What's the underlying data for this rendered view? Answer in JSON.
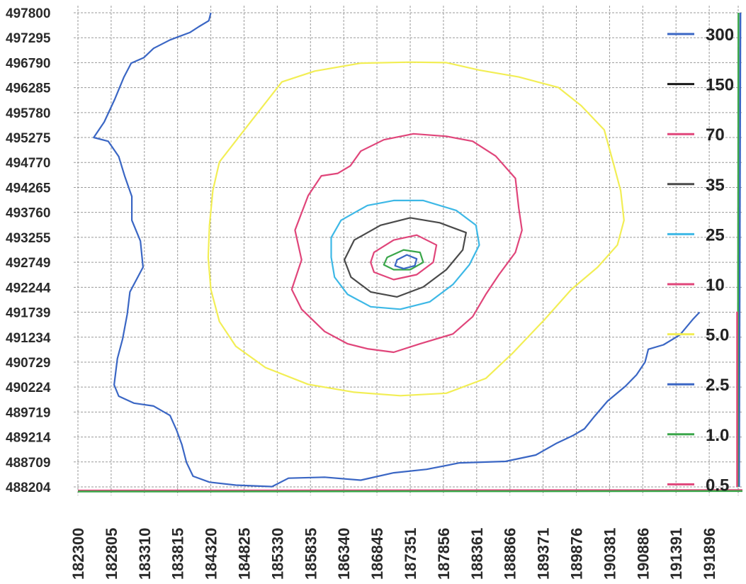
{
  "chart_data": {
    "type": "contour",
    "title": "",
    "xlabel": "",
    "ylabel": "",
    "xlim": [
      182300,
      192401
    ],
    "ylim": [
      488204,
      497800
    ],
    "grid": true,
    "legend_position": "right",
    "x_ticks": [
      "182300",
      "182805",
      "183310",
      "183815",
      "184320",
      "184825",
      "185330",
      "185835",
      "186340",
      "186845",
      "187351",
      "187856",
      "188361",
      "188866",
      "189371",
      "189876",
      "190381",
      "190886",
      "191391",
      "191896"
    ],
    "y_ticks": [
      "497800",
      "497295",
      "496790",
      "496285",
      "495780",
      "495275",
      "494770",
      "494265",
      "493760",
      "493255",
      "492749",
      "492244",
      "491739",
      "491234",
      "490729",
      "490224",
      "489719",
      "489214",
      "488709",
      "488204"
    ],
    "highlighted_y_ticks": [
      "492244",
      "491234"
    ],
    "levels": [
      {
        "label": "300",
        "color": "#3a66c4"
      },
      {
        "label": "150",
        "color": "#1a1a1a"
      },
      {
        "label": "70",
        "color": "#e0457a"
      },
      {
        "label": "35",
        "color": "#4a4a4a"
      },
      {
        "label": "25",
        "color": "#3db8e6"
      },
      {
        "label": "10",
        "color": "#e0457a"
      },
      {
        "label": "5.0",
        "color": "#f2ee55"
      },
      {
        "label": "2.5",
        "color": "#3a66c4"
      },
      {
        "label": "1.0",
        "color": "#3aa64a"
      },
      {
        "label": "0.5",
        "color": "#e0457a"
      }
    ],
    "contours": [
      {
        "level": "2.5",
        "color": "#3a66c4",
        "closed": false,
        "points": [
          [
            184320,
            497800
          ],
          [
            184290,
            497640
          ],
          [
            184140,
            497520
          ],
          [
            184000,
            497400
          ],
          [
            183700,
            497250
          ],
          [
            183450,
            497080
          ],
          [
            183300,
            496890
          ],
          [
            183110,
            496780
          ],
          [
            183000,
            496500
          ],
          [
            182860,
            496050
          ],
          [
            182700,
            495590
          ],
          [
            182540,
            495275
          ],
          [
            182760,
            495200
          ],
          [
            182920,
            494890
          ],
          [
            183010,
            494500
          ],
          [
            183120,
            494080
          ],
          [
            183120,
            493600
          ],
          [
            183250,
            493180
          ],
          [
            183290,
            492650
          ],
          [
            183090,
            492150
          ],
          [
            183050,
            491700
          ],
          [
            182980,
            491200
          ],
          [
            182900,
            490800
          ],
          [
            182850,
            490270
          ],
          [
            182920,
            490040
          ],
          [
            183150,
            489900
          ],
          [
            183450,
            489840
          ],
          [
            183700,
            489650
          ],
          [
            183800,
            489350
          ],
          [
            183880,
            489060
          ],
          [
            183950,
            488700
          ],
          [
            184050,
            488420
          ],
          [
            184300,
            488300
          ],
          [
            184700,
            488240
          ],
          [
            185250,
            488210
          ],
          [
            185500,
            488380
          ],
          [
            186050,
            488400
          ],
          [
            186600,
            488340
          ],
          [
            187100,
            488490
          ],
          [
            187600,
            488560
          ],
          [
            188100,
            488690
          ],
          [
            188800,
            488720
          ],
          [
            189260,
            488850
          ],
          [
            189580,
            489090
          ],
          [
            189820,
            489240
          ],
          [
            190000,
            489380
          ],
          [
            190150,
            489630
          ],
          [
            190350,
            489940
          ],
          [
            190620,
            490240
          ],
          [
            190790,
            490470
          ],
          [
            190920,
            490730
          ],
          [
            190970,
            490990
          ],
          [
            191200,
            491080
          ],
          [
            191450,
            491280
          ],
          [
            191650,
            491600
          ],
          [
            191750,
            491740
          ]
        ]
      },
      {
        "level": "5.0",
        "color": "#f2ee55",
        "closed": true,
        "points": [
          [
            185400,
            496400
          ],
          [
            185900,
            496620
          ],
          [
            186600,
            496780
          ],
          [
            187350,
            496800
          ],
          [
            187900,
            496790
          ],
          [
            188400,
            496640
          ],
          [
            189000,
            496500
          ],
          [
            189600,
            496290
          ],
          [
            189950,
            495920
          ],
          [
            190300,
            495430
          ],
          [
            190450,
            494700
          ],
          [
            190550,
            494200
          ],
          [
            190600,
            493600
          ],
          [
            190500,
            493100
          ],
          [
            190200,
            492650
          ],
          [
            189800,
            492200
          ],
          [
            189400,
            491600
          ],
          [
            188900,
            490900
          ],
          [
            188500,
            490400
          ],
          [
            187900,
            490100
          ],
          [
            187200,
            490050
          ],
          [
            186500,
            490120
          ],
          [
            185800,
            490280
          ],
          [
            185150,
            490620
          ],
          [
            184700,
            491050
          ],
          [
            184450,
            491550
          ],
          [
            184320,
            492200
          ],
          [
            184280,
            492850
          ],
          [
            184300,
            493500
          ],
          [
            184350,
            494200
          ],
          [
            184450,
            494780
          ],
          [
            184900,
            495550
          ],
          [
            185400,
            496400
          ]
        ]
      },
      {
        "level": "10",
        "color": "#e0457a",
        "closed": true,
        "points": [
          [
            186440,
            494700
          ],
          [
            186600,
            495000
          ],
          [
            186950,
            495230
          ],
          [
            187400,
            495350
          ],
          [
            187900,
            495300
          ],
          [
            188300,
            495200
          ],
          [
            188650,
            494900
          ],
          [
            188950,
            494450
          ],
          [
            189000,
            493850
          ],
          [
            189050,
            493400
          ],
          [
            188950,
            492950
          ],
          [
            188700,
            492500
          ],
          [
            188500,
            492100
          ],
          [
            188300,
            491650
          ],
          [
            188000,
            491300
          ],
          [
            187500,
            491100
          ],
          [
            187100,
            490930
          ],
          [
            186700,
            491000
          ],
          [
            186400,
            491100
          ],
          [
            186050,
            491350
          ],
          [
            185700,
            491800
          ],
          [
            185550,
            492200
          ],
          [
            185700,
            492800
          ],
          [
            185600,
            493400
          ],
          [
            185800,
            494100
          ],
          [
            186000,
            494500
          ],
          [
            186250,
            494550
          ],
          [
            186440,
            494700
          ]
        ]
      },
      {
        "level": "25",
        "color": "#3db8e6",
        "closed": true,
        "points": [
          [
            186300,
            493600
          ],
          [
            186700,
            493900
          ],
          [
            187100,
            494000
          ],
          [
            187550,
            494000
          ],
          [
            188050,
            493800
          ],
          [
            188350,
            493500
          ],
          [
            188400,
            493100
          ],
          [
            188250,
            492700
          ],
          [
            188000,
            492300
          ],
          [
            187650,
            491950
          ],
          [
            187200,
            491800
          ],
          [
            186750,
            491850
          ],
          [
            186400,
            492100
          ],
          [
            186200,
            492450
          ],
          [
            186150,
            492850
          ],
          [
            186150,
            493250
          ],
          [
            186300,
            493600
          ]
        ]
      },
      {
        "level": "35",
        "color": "#4a4a4a",
        "closed": true,
        "points": [
          [
            186500,
            493200
          ],
          [
            186900,
            493500
          ],
          [
            187350,
            493650
          ],
          [
            187800,
            493550
          ],
          [
            188200,
            493350
          ],
          [
            188150,
            493000
          ],
          [
            187900,
            492600
          ],
          [
            187550,
            492250
          ],
          [
            187150,
            492050
          ],
          [
            186750,
            492150
          ],
          [
            186450,
            492450
          ],
          [
            186350,
            492800
          ],
          [
            186500,
            493200
          ]
        ]
      },
      {
        "level": "70",
        "color": "#e0457a",
        "closed": true,
        "points": [
          [
            186800,
            492950
          ],
          [
            187100,
            493200
          ],
          [
            187450,
            493300
          ],
          [
            187750,
            493100
          ],
          [
            187700,
            492750
          ],
          [
            187450,
            492500
          ],
          [
            187100,
            492400
          ],
          [
            186800,
            492550
          ],
          [
            186750,
            492750
          ],
          [
            186800,
            492950
          ]
        ]
      },
      {
        "level": "1.0",
        "color": "#3aa64a",
        "closed": true,
        "points": [
          [
            187000,
            492850
          ],
          [
            187250,
            493000
          ],
          [
            187500,
            492950
          ],
          [
            187550,
            492750
          ],
          [
            187350,
            492600
          ],
          [
            187100,
            492600
          ],
          [
            186950,
            492700
          ],
          [
            187000,
            492850
          ]
        ]
      },
      {
        "level": "300",
        "color": "#3a66c4",
        "closed": true,
        "points": [
          [
            187150,
            492800
          ],
          [
            187300,
            492900
          ],
          [
            187450,
            492820
          ],
          [
            187420,
            492680
          ],
          [
            187250,
            492620
          ],
          [
            187120,
            492680
          ],
          [
            187150,
            492800
          ]
        ]
      }
    ],
    "frame_lines": [
      {
        "color": "#e0457a",
        "points": [
          [
            182300,
            488130
          ],
          [
            192401,
            488140
          ]
        ]
      },
      {
        "color": "#3aa64a",
        "points": [
          [
            182300,
            488110
          ],
          [
            192401,
            488120
          ]
        ]
      },
      {
        "color": "#3a66c4",
        "points": [
          [
            192350,
            488204
          ],
          [
            192370,
            497800
          ]
        ]
      },
      {
        "color": "#3aa64a",
        "points": [
          [
            192330,
            488204
          ],
          [
            192340,
            497800
          ]
        ]
      },
      {
        "color": "#e0457a",
        "points": [
          [
            192320,
            488204
          ],
          [
            192320,
            491750
          ]
        ]
      }
    ]
  }
}
